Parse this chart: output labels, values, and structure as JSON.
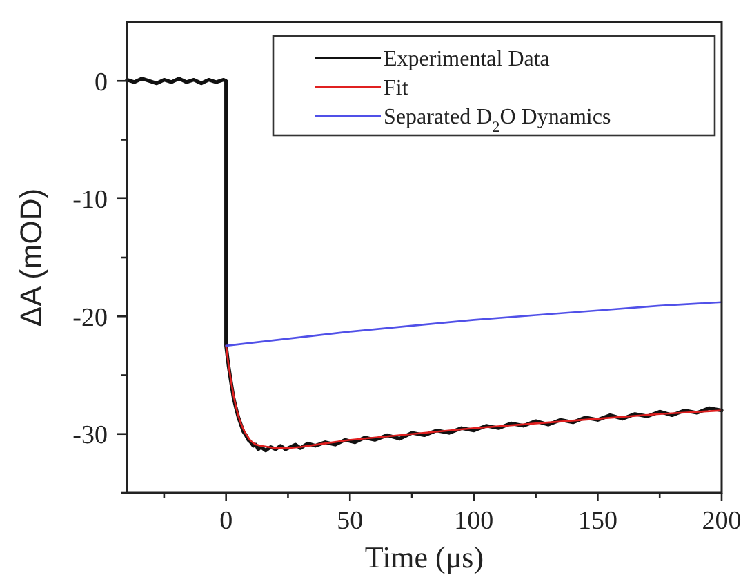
{
  "chart_data": {
    "type": "line",
    "xlabel": "Time  (μs)",
    "ylabel": "ΔA  (mOD)",
    "xlim": [
      -40,
      200
    ],
    "ylim": [
      -35,
      5
    ],
    "xticks": [
      {
        "value": -25,
        "label": null
      },
      0,
      {
        "value": 25,
        "label": null
      },
      50,
      {
        "value": 75,
        "label": null
      },
      100,
      {
        "value": 125,
        "label": null
      },
      150,
      {
        "value": 175,
        "label": null
      },
      200
    ],
    "yticks": [
      {
        "value": -35,
        "label": null
      },
      -30,
      {
        "value": -25,
        "label": null
      },
      -20,
      {
        "value": -15,
        "label": null
      },
      -10,
      {
        "value": -5,
        "label": null
      },
      0
    ],
    "grid": false,
    "legend": "top right",
    "line_style": "solid",
    "marker": "none",
    "series": [
      {
        "name": "Experimental Data",
        "color": "#111111",
        "x": [
          -40,
          -37,
          -34,
          -31,
          -28,
          -25,
          -22,
          -19,
          -16,
          -13,
          -10,
          -7,
          -4,
          -1,
          0,
          0,
          1,
          2,
          3,
          4,
          5,
          6,
          7,
          8,
          9,
          10,
          11,
          12,
          13,
          14,
          16,
          18,
          20,
          22,
          24,
          26,
          28,
          30,
          33,
          36,
          40,
          44,
          48,
          52,
          56,
          60,
          65,
          70,
          75,
          80,
          85,
          90,
          95,
          100,
          105,
          110,
          115,
          120,
          125,
          130,
          135,
          140,
          145,
          150,
          155,
          160,
          165,
          170,
          175,
          180,
          185,
          190,
          195,
          200
        ],
        "values": [
          0.1,
          -0.1,
          0.2,
          0,
          -0.2,
          0.1,
          -0.1,
          0.2,
          -0.1,
          0.1,
          -0.2,
          0.1,
          -0.1,
          0.1,
          0,
          -22.5,
          -24.2,
          -25.6,
          -26.9,
          -27.8,
          -28.6,
          -29.2,
          -29.8,
          -30.1,
          -30.5,
          -30.7,
          -31.0,
          -30.9,
          -31.3,
          -31.1,
          -31.4,
          -31.1,
          -31.3,
          -31.0,
          -31.3,
          -31.1,
          -30.9,
          -31.2,
          -30.8,
          -31.0,
          -30.7,
          -30.9,
          -30.5,
          -30.7,
          -30.3,
          -30.5,
          -30.1,
          -30.4,
          -29.9,
          -30.1,
          -29.7,
          -29.9,
          -29.5,
          -29.7,
          -29.3,
          -29.5,
          -29.1,
          -29.3,
          -28.9,
          -29.2,
          -28.8,
          -29.0,
          -28.6,
          -28.8,
          -28.4,
          -28.7,
          -28.3,
          -28.5,
          -28.1,
          -28.4,
          -28.0,
          -28.2,
          -27.8,
          -28.0
        ]
      },
      {
        "name": "Fit",
        "color": "#e02020",
        "x": [
          0,
          1,
          2,
          3,
          4,
          5,
          6,
          7,
          8,
          10,
          12,
          14,
          17,
          20,
          25,
          30,
          40,
          50,
          75,
          100,
          125,
          150,
          175,
          200
        ],
        "values": [
          -22.5,
          -24.1,
          -25.5,
          -26.7,
          -27.7,
          -28.5,
          -29.1,
          -29.6,
          -30.0,
          -30.6,
          -30.9,
          -31.0,
          -31.1,
          -31.2,
          -31.2,
          -31.1,
          -30.8,
          -30.5,
          -30.0,
          -29.5,
          -29.1,
          -28.7,
          -28.3,
          -28.0
        ]
      },
      {
        "name": "Separated D$_{2}$O Dynamics",
        "color": "#5050e8",
        "x": [
          0,
          25,
          50,
          75,
          100,
          125,
          150,
          175,
          200
        ],
        "values": [
          -22.5,
          -21.9,
          -21.3,
          -20.8,
          -20.3,
          -19.9,
          -19.5,
          -19.1,
          -18.8
        ]
      }
    ]
  }
}
